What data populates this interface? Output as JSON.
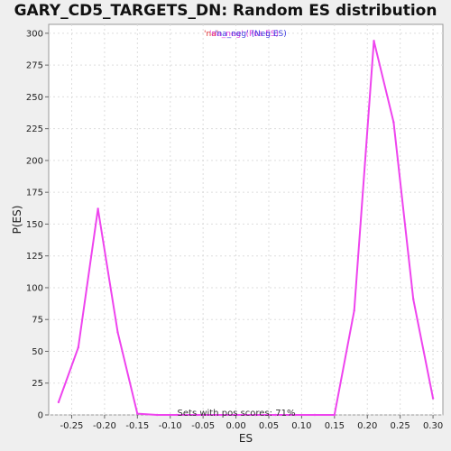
{
  "chart_data": {
    "type": "line",
    "title": "GARY_CD5_TARGETS_DN: Random ES distribution",
    "xlabel": "ES",
    "ylabel": "P(ES)",
    "xlim": [
      -0.285,
      0.315
    ],
    "ylim": [
      0,
      307
    ],
    "xticks": [
      "-0.25",
      "-0.20",
      "-0.15",
      "-0.10",
      "-0.05",
      "0.00",
      "0.05",
      "0.10",
      "0.15",
      "0.20",
      "0.25",
      "0.30"
    ],
    "xtick_values": [
      -0.25,
      -0.2,
      -0.15,
      -0.1,
      -0.05,
      0.0,
      0.05,
      0.1,
      0.15,
      0.2,
      0.25,
      0.3
    ],
    "yticks": [
      "0",
      "25",
      "50",
      "75",
      "100",
      "125",
      "150",
      "175",
      "200",
      "225",
      "250",
      "275",
      "300"
    ],
    "ytick_values": [
      0,
      25,
      50,
      75,
      100,
      125,
      150,
      175,
      200,
      225,
      250,
      275,
      300
    ],
    "grid": true,
    "legend": {
      "position": "top-center",
      "entries": [
        {
          "label": "'na'",
          "color": "#e03030"
        },
        {
          "label": "'na_neg' (Pos ES)",
          "color": "#e040e0"
        },
        {
          "label": "'na_neg' (Neg ES)",
          "color": "#4040e0"
        }
      ]
    },
    "annotation": "Sets with pos scores: 71%",
    "series": [
      {
        "color": "#ee44ee",
        "x": [
          -0.27,
          -0.24,
          -0.21,
          -0.18,
          -0.15,
          -0.12,
          -0.09,
          -0.06,
          -0.03,
          0.0,
          0.03,
          0.06,
          0.09,
          0.12,
          0.15,
          0.18,
          0.21,
          0.24,
          0.27,
          0.3
        ],
        "y": [
          10,
          53,
          162,
          65,
          1,
          0,
          0,
          0,
          0,
          0,
          0,
          0,
          0,
          0,
          0,
          82,
          294,
          230,
          91,
          13
        ]
      }
    ]
  }
}
